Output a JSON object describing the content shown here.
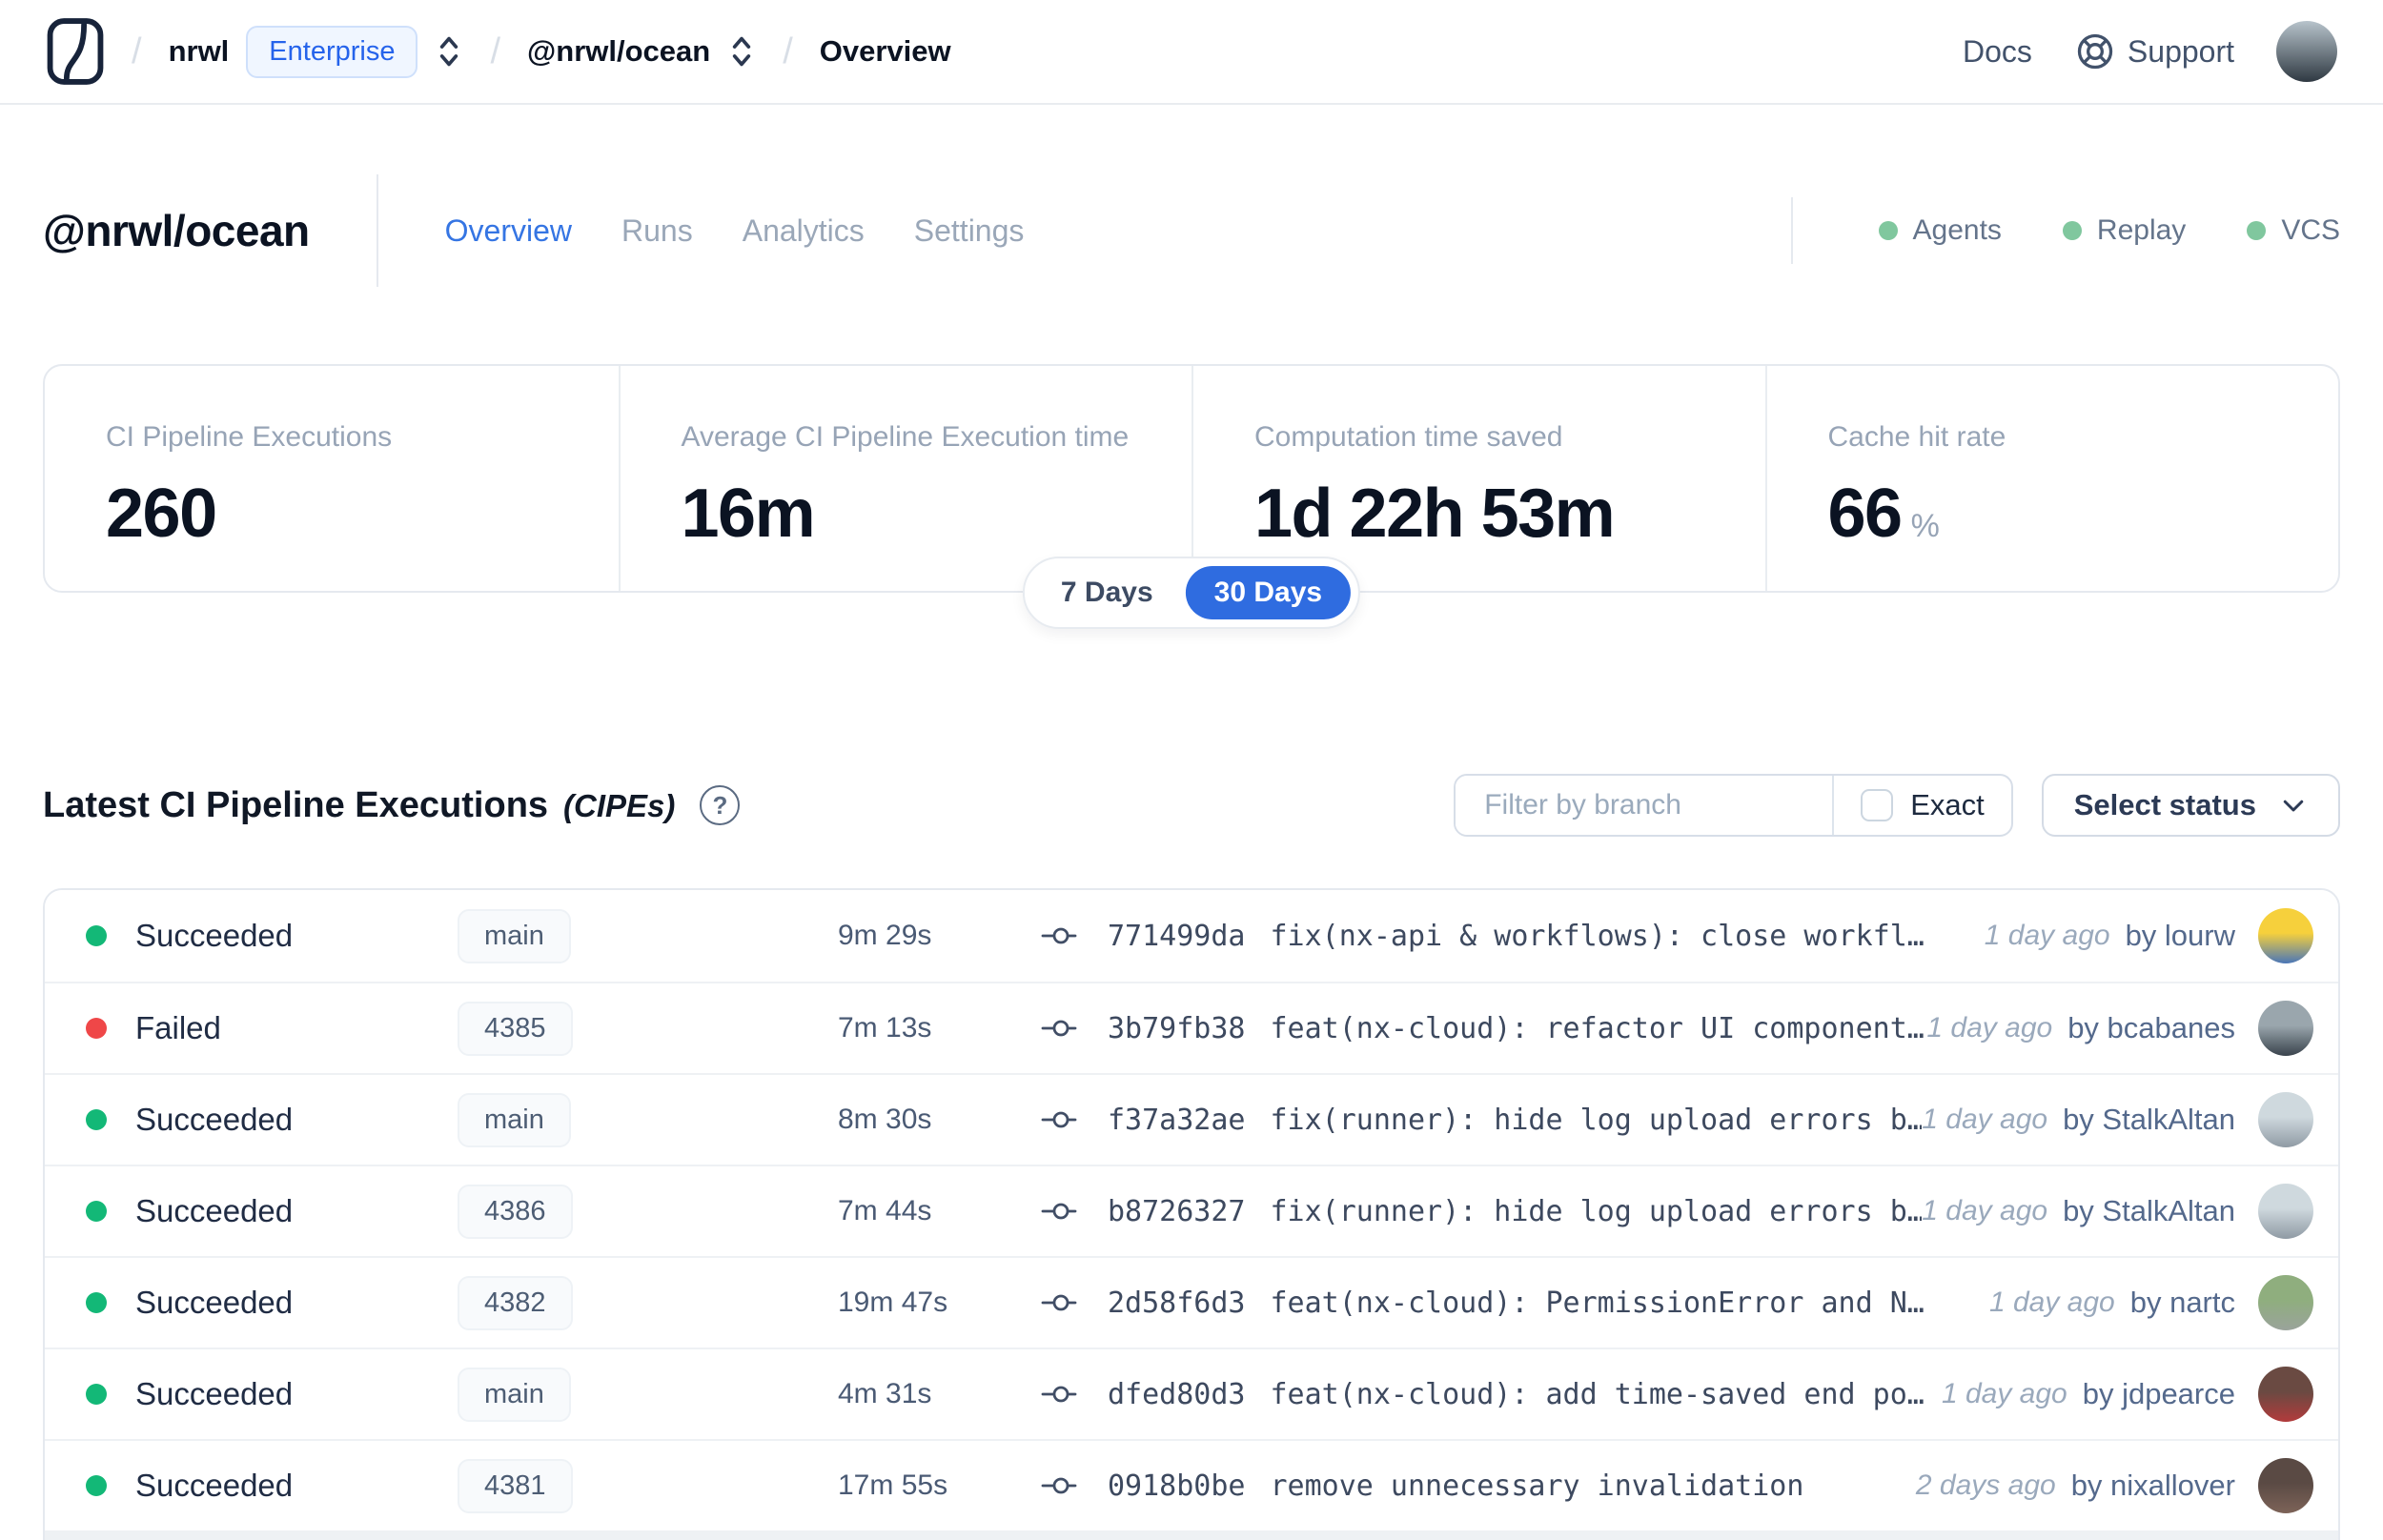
{
  "header": {
    "breadcrumb": {
      "separator": "/",
      "org": "nrwl",
      "plan_badge": "Enterprise",
      "workspace": "@nrwl/ocean",
      "page": "Overview"
    },
    "nav": {
      "docs": "Docs",
      "support": "Support"
    },
    "avatar_colors": [
      "#b7c3cb",
      "#2f3942"
    ]
  },
  "workspace": {
    "title": "@nrwl/ocean",
    "tabs": [
      {
        "label": "Overview",
        "active": true
      },
      {
        "label": "Runs",
        "active": false
      },
      {
        "label": "Analytics",
        "active": false
      },
      {
        "label": "Settings",
        "active": false
      }
    ],
    "services": [
      {
        "label": "Agents",
        "status_color": "#80c79e"
      },
      {
        "label": "Replay",
        "status_color": "#80c79e"
      },
      {
        "label": "VCS",
        "status_color": "#80c79e"
      }
    ]
  },
  "stats": {
    "cards": [
      {
        "label": "CI Pipeline Executions",
        "value": "260",
        "unit": ""
      },
      {
        "label": "Average CI Pipeline Execution time",
        "value": "16m",
        "unit": ""
      },
      {
        "label": "Computation time saved",
        "value": "1d 22h 53m",
        "unit": ""
      },
      {
        "label": "Cache hit rate",
        "value": "66",
        "unit": "%"
      }
    ],
    "range_toggle": {
      "options": [
        {
          "label": "7 Days",
          "active": false
        },
        {
          "label": "30 Days",
          "active": true
        }
      ]
    }
  },
  "cipes": {
    "title": "Latest CI Pipeline Executions",
    "subtitle": "(CIPEs)",
    "help_glyph": "?",
    "filter": {
      "placeholder": "Filter by branch",
      "exact_label": "Exact",
      "status_label": "Select status"
    }
  },
  "table": {
    "rows": [
      {
        "status": "Succeeded",
        "branch": "main",
        "duration": "9m 29s",
        "commit_hash": "771499da",
        "commit_message": "fix(nx-api & workflows): close workfl…",
        "time_ago": "1 day ago",
        "author": "by lourw",
        "avatar_colors": [
          "#f6d03c",
          "#4a76b8"
        ]
      },
      {
        "status": "Failed",
        "branch": "4385",
        "duration": "7m 13s",
        "commit_hash": "3b79fb38",
        "commit_message": "feat(nx-cloud): refactor UI component…",
        "time_ago": "1 day ago",
        "author": "by bcabanes",
        "avatar_colors": [
          "#9aa6ad",
          "#39434c"
        ]
      },
      {
        "status": "Succeeded",
        "branch": "main",
        "duration": "8m 30s",
        "commit_hash": "f37a32ae",
        "commit_message": "fix(runner): hide log upload errors b…",
        "time_ago": "1 day ago",
        "author": "by StalkAltan",
        "avatar_colors": [
          "#cfd9de",
          "#8f9aa4"
        ]
      },
      {
        "status": "Succeeded",
        "branch": "4386",
        "duration": "7m 44s",
        "commit_hash": "b8726327",
        "commit_message": "fix(runner): hide log upload errors b…",
        "time_ago": "1 day ago",
        "author": "by StalkAltan",
        "avatar_colors": [
          "#cfd9de",
          "#8f9aa4"
        ]
      },
      {
        "status": "Succeeded",
        "branch": "4382",
        "duration": "19m 47s",
        "commit_hash": "2d58f6d3",
        "commit_message": "feat(nx-cloud): PermissionError and N…",
        "time_ago": "1 day ago",
        "author": "by nartc",
        "avatar_colors": [
          "#8fae7e",
          "#9aa39b"
        ]
      },
      {
        "status": "Succeeded",
        "branch": "main",
        "duration": "4m 31s",
        "commit_hash": "dfed80d3",
        "commit_message": "feat(nx-cloud): add time-saved end po…",
        "time_ago": "1 day ago",
        "author": "by jdpearce",
        "avatar_colors": [
          "#6a4a42",
          "#b23b3c"
        ]
      },
      {
        "status": "Succeeded",
        "branch": "4381",
        "duration": "17m 55s",
        "commit_hash": "0918b0be",
        "commit_message": "remove unnecessary invalidation",
        "time_ago": "2 days ago",
        "author": "by nixallover",
        "avatar_colors": [
          "#5a4a44",
          "#7d6358"
        ]
      }
    ]
  },
  "colors": {
    "accent_blue": "#2f6ce0",
    "success_green": "#13b877",
    "fail_red": "#ef4748"
  }
}
